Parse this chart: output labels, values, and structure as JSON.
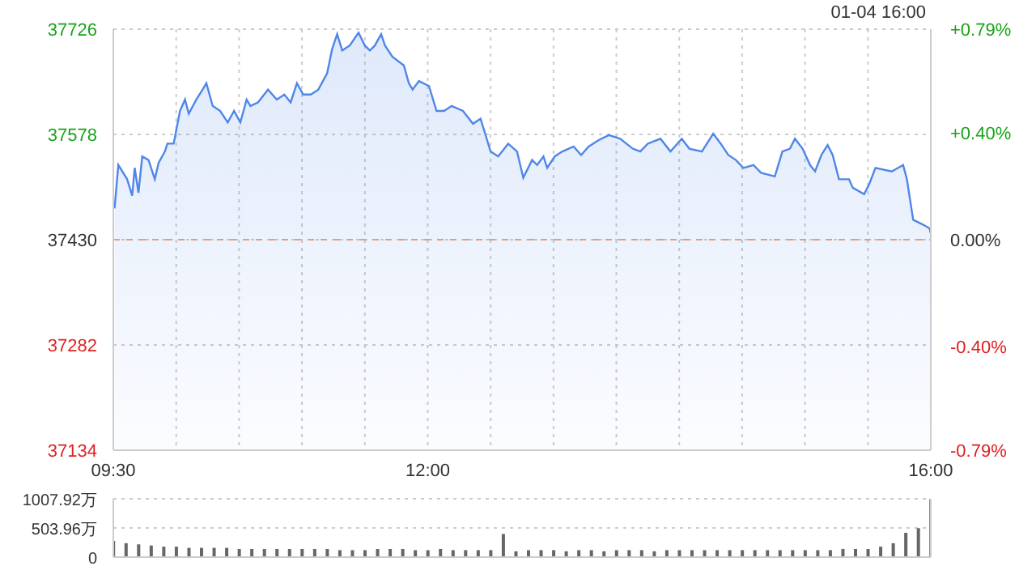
{
  "chart_data": [
    {
      "type": "area",
      "annotations": [
        "01-04 16:00"
      ],
      "x": [
        9.51,
        9.54,
        9.61,
        9.65,
        9.67,
        9.7,
        9.73,
        9.78,
        9.83,
        9.86,
        9.91,
        9.93,
        9.98,
        10.03,
        10.07,
        10.1,
        10.16,
        10.21,
        10.24,
        10.29,
        10.35,
        10.41,
        10.46,
        10.51,
        10.56,
        10.59,
        10.65,
        10.73,
        10.8,
        10.86,
        10.91,
        10.96,
        11.01,
        11.07,
        11.13,
        11.2,
        11.24,
        11.28,
        11.32,
        11.38,
        11.45,
        11.5,
        11.54,
        11.58,
        11.63,
        11.66,
        11.72,
        11.81,
        11.85,
        11.88,
        11.93,
        12.01,
        12.07,
        12.13,
        12.19,
        12.28,
        12.36,
        12.42,
        12.5,
        12.56,
        12.64,
        12.71,
        12.76,
        12.83,
        12.87,
        12.92,
        12.95,
        13.01,
        13.07,
        13.16,
        13.22,
        13.28,
        13.36,
        13.44,
        13.53,
        13.63,
        13.69,
        13.75,
        13.85,
        13.93,
        14.02,
        14.08,
        14.18,
        14.27,
        14.33,
        14.39,
        14.45,
        14.51,
        14.59,
        14.65,
        14.76,
        14.82,
        14.88,
        14.92,
        14.98,
        15.04,
        15.08,
        15.13,
        15.18,
        15.22,
        15.27,
        15.35,
        15.38,
        15.47,
        15.51,
        15.56,
        15.69,
        15.78,
        15.81,
        15.86,
        15.94,
        15.99,
        16.0
      ],
      "series": [
        {
          "color": "#4f86e8",
          "values": [
            37474,
            37535,
            37515,
            37492,
            37531,
            37496,
            37547,
            37542,
            37515,
            37538,
            37554,
            37565,
            37565,
            37611,
            37627,
            37607,
            37627,
            37641,
            37650,
            37618,
            37611,
            37595,
            37611,
            37595,
            37627,
            37618,
            37623,
            37641,
            37627,
            37634,
            37623,
            37650,
            37634,
            37634,
            37641,
            37664,
            37698,
            37719,
            37696,
            37703,
            37721,
            37703,
            37696,
            37703,
            37719,
            37703,
            37687,
            37675,
            37650,
            37641,
            37653,
            37646,
            37611,
            37611,
            37618,
            37611,
            37593,
            37600,
            37554,
            37547,
            37565,
            37554,
            37517,
            37542,
            37535,
            37547,
            37531,
            37547,
            37554,
            37561,
            37549,
            37561,
            37570,
            37577,
            37572,
            37558,
            37554,
            37565,
            37572,
            37554,
            37572,
            37558,
            37554,
            37579,
            37565,
            37549,
            37542,
            37531,
            37535,
            37524,
            37519,
            37554,
            37558,
            37572,
            37558,
            37535,
            37526,
            37549,
            37563,
            37549,
            37515,
            37515,
            37503,
            37494,
            37508,
            37531,
            37526,
            37535,
            37515,
            37458,
            37451,
            37446,
            37439
          ]
        }
      ],
      "xlim": [
        9.5,
        16
      ],
      "xticks": [
        {
          "value": 9.5,
          "label": "09:30"
        },
        {
          "value": 10,
          "label": null
        },
        {
          "value": 10.5,
          "label": null
        },
        {
          "value": 11,
          "label": null
        },
        {
          "value": 11.5,
          "label": null
        },
        {
          "value": 12,
          "label": "12:00"
        },
        {
          "value": 12.5,
          "label": null
        },
        {
          "value": 13,
          "label": null
        },
        {
          "value": 13.5,
          "label": null
        },
        {
          "value": 14,
          "label": null
        },
        {
          "value": 14.5,
          "label": null
        },
        {
          "value": 15,
          "label": null
        },
        {
          "value": 15.5,
          "label": null
        },
        {
          "value": 16,
          "label": "16:00"
        }
      ],
      "ylim": [
        37134,
        37726
      ],
      "yticks": [
        37134,
        37282,
        37430,
        37578,
        37726
      ],
      "y2lim": [
        -0.79,
        0.79
      ],
      "y2ticks": [
        {
          "value": -0.79,
          "label": "-0.79%"
        },
        {
          "value": -0.4,
          "label": "-0.40%"
        },
        {
          "value": 0,
          "label": "0.00%"
        },
        {
          "value": 0.4,
          "label": "+0.40%"
        },
        {
          "value": 0.79,
          "label": "+0.79%"
        }
      ],
      "ref_lines": [
        {
          "axis": "y",
          "value": 37430,
          "color": "#e0a080",
          "line_style": "dashed"
        }
      ],
      "grid": true
    },
    {
      "type": "bar",
      "tick_labels": "y",
      "x": [
        9.5,
        9.6,
        9.7,
        9.8,
        9.9,
        10.0,
        10.1,
        10.2,
        10.3,
        10.4,
        10.5,
        10.6,
        10.7,
        10.8,
        10.9,
        11.0,
        11.1,
        11.2,
        11.3,
        11.4,
        11.5,
        11.6,
        11.7,
        11.8,
        11.9,
        12.0,
        12.1,
        12.2,
        12.3,
        12.4,
        12.5,
        12.6,
        12.7,
        12.8,
        12.9,
        13.0,
        13.1,
        13.2,
        13.3,
        13.4,
        13.5,
        13.6,
        13.7,
        13.8,
        13.9,
        14.0,
        14.1,
        14.2,
        14.3,
        14.4,
        14.5,
        14.6,
        14.7,
        14.8,
        14.9,
        15.0,
        15.1,
        15.2,
        15.3,
        15.4,
        15.5,
        15.6,
        15.7,
        15.8,
        15.9,
        16.0
      ],
      "series": [
        {
          "color": "#666666",
          "values": [
            280,
            240,
            220,
            200,
            180,
            180,
            160,
            160,
            160,
            160,
            140,
            140,
            140,
            140,
            140,
            140,
            140,
            140,
            120,
            120,
            120,
            140,
            140,
            140,
            120,
            120,
            140,
            120,
            120,
            120,
            120,
            400,
            100,
            120,
            120,
            120,
            100,
            120,
            120,
            100,
            120,
            120,
            120,
            100,
            120,
            120,
            120,
            120,
            120,
            120,
            120,
            120,
            120,
            120,
            120,
            120,
            120,
            120,
            140,
            140,
            140,
            180,
            240,
            420,
            500,
            1000
          ]
        }
      ],
      "xlim": [
        9.5,
        16
      ],
      "ylim": [
        0,
        1007.92
      ],
      "yticks": [
        0,
        {
          "value": 503.96,
          "label": "503.96万"
        },
        {
          "value": 1007.92,
          "label": "1007.92万"
        }
      ],
      "grid": "y"
    }
  ]
}
